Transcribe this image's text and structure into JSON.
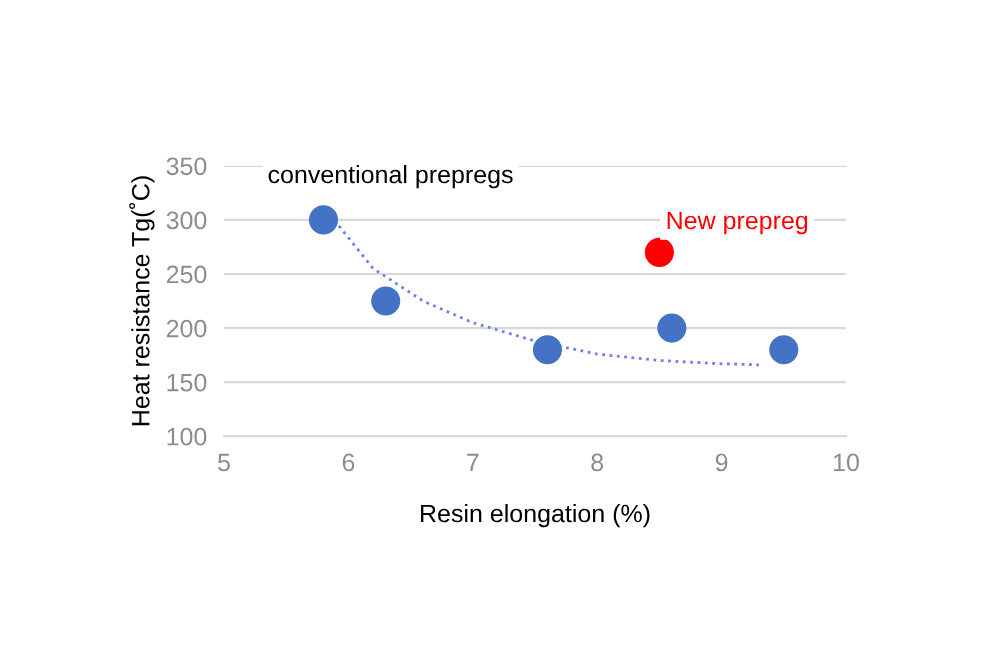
{
  "chart_data": {
    "type": "scatter",
    "xlabel": "Resin elongation (%)",
    "ylabel": "Heat resistance Tg(˚C)",
    "xlim": [
      5,
      10
    ],
    "xticks": [
      5,
      6,
      7,
      8,
      9,
      10
    ],
    "ylim": [
      100,
      350
    ],
    "yticks": [
      100,
      150,
      200,
      250,
      300,
      350
    ],
    "grid": "y",
    "legend": false,
    "marker": "circle",
    "series": [
      {
        "name": "conventional prepregs",
        "color": "#4472c4",
        "x": [
          5.8,
          6.3,
          7.6,
          8.6,
          9.5
        ],
        "values": [
          300,
          225,
          180,
          200,
          180
        ]
      },
      {
        "name": "New prepreg",
        "color": "#ff0000",
        "x": [
          8.5
        ],
        "values": [
          270
        ]
      },
      {
        "type": "line",
        "color": "#6f7ff0",
        "line_style": "dotted",
        "marker": "none",
        "x": [
          5.85,
          6.2,
          6.6,
          7.0,
          7.5,
          8.0,
          8.5,
          9.0,
          9.3
        ],
        "values": [
          305,
          255,
          225,
          205,
          188,
          176,
          170,
          167,
          166
        ]
      }
    ]
  }
}
